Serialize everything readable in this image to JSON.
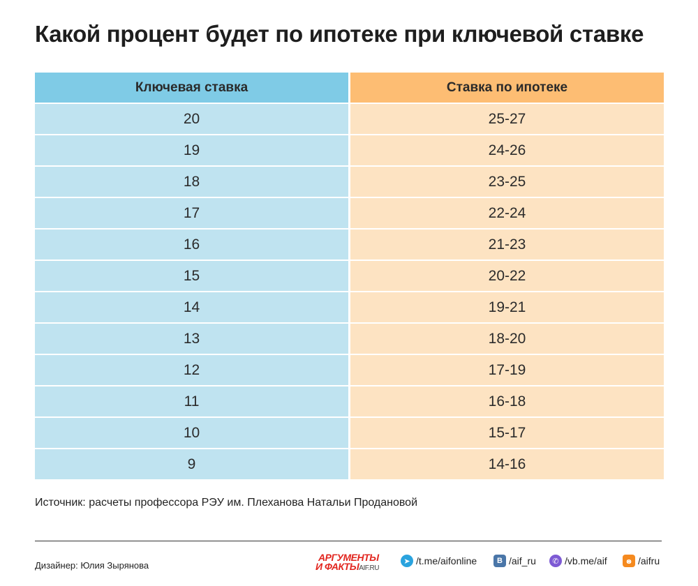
{
  "title": "Какой процент будет по ипотеке при ключевой ставке",
  "chart_data": {
    "type": "table",
    "columns": [
      "Ключевая ставка",
      "Ставка по ипотеке"
    ],
    "rows": [
      [
        "20",
        "25-27"
      ],
      [
        "19",
        "24-26"
      ],
      [
        "18",
        "23-25"
      ],
      [
        "17",
        "22-24"
      ],
      [
        "16",
        "21-23"
      ],
      [
        "15",
        "20-22"
      ],
      [
        "14",
        "19-21"
      ],
      [
        "13",
        "18-20"
      ],
      [
        "12",
        "17-19"
      ],
      [
        "11",
        "16-18"
      ],
      [
        "10",
        "15-17"
      ],
      [
        "9",
        "14-16"
      ]
    ]
  },
  "colors": {
    "left_header": "#7fcbe6",
    "left_cell": "#bfe3f0",
    "right_header": "#fdbd73",
    "right_cell": "#fde3c2",
    "brand": "#e2261f"
  },
  "source": "Источник: расчеты профессора РЭУ им. Плеханова Натальи Продановой",
  "footer": {
    "designer": "Дизайнер: Юлия Зырянова",
    "brand_line1": "АРГУМЕНТЫ",
    "brand_line2": "И ФАКТЫ",
    "brand_domain": "AIF.RU",
    "socials": [
      {
        "icon": "telegram-icon",
        "text": "/t.me/aifonline"
      },
      {
        "icon": "vk-icon",
        "text": "/aif_ru"
      },
      {
        "icon": "viber-icon",
        "text": "/vb.me/aif"
      },
      {
        "icon": "odnoklassniki-icon",
        "text": "/aifru"
      }
    ]
  }
}
